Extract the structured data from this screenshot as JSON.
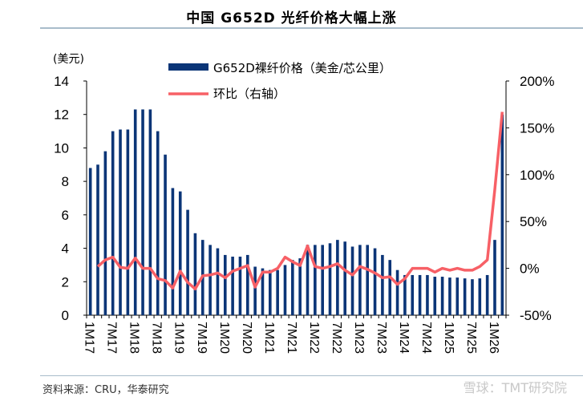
{
  "header": {
    "title": "中国 G652D 光纤价格大幅上涨"
  },
  "footer": {
    "source": "资料来源：CRU，华泰研究",
    "watermark": "雪球：TMT研究院"
  },
  "colors": {
    "bar": "#0b3577",
    "line": "#f76066",
    "rule": "#a9bccb"
  },
  "chart_data": {
    "type": "bar+line",
    "title": "中国 G652D 光纤价格大幅上涨",
    "y_left_unit_label": "(美元)",
    "y_left_ticks": [
      "0",
      "2",
      "4",
      "6",
      "8",
      "10",
      "12",
      "14"
    ],
    "y_left_range": [
      0,
      14
    ],
    "y_right_ticks": [
      "-50%",
      "0%",
      "50%",
      "100%",
      "150%",
      "200%"
    ],
    "y_right_range": [
      -50,
      200
    ],
    "x_tick_labels": [
      "1M17",
      "7M17",
      "1M18",
      "7M18",
      "1M19",
      "7M19",
      "1M20",
      "7M20",
      "1M21",
      "7M21",
      "1M22",
      "7M22",
      "1M23",
      "7M23",
      "1M24",
      "7M24",
      "1M25",
      "7M25",
      "1M26"
    ],
    "legend": [
      {
        "name": "G652D裸纤价格（美金/芯公里）",
        "type": "bar"
      },
      {
        "name": "环比（右轴）",
        "type": "line"
      }
    ],
    "legend_position": "top-center",
    "categories": [
      "1M17",
      "3M17",
      "5M17",
      "7M17",
      "9M17",
      "11M17",
      "1M18",
      "3M18",
      "5M18",
      "7M18",
      "9M18",
      "11M18",
      "1M19",
      "3M19",
      "5M19",
      "7M19",
      "9M19",
      "11M19",
      "1M20",
      "3M20",
      "5M20",
      "7M20",
      "9M20",
      "11M20",
      "1M21",
      "3M21",
      "5M21",
      "7M21",
      "9M21",
      "11M21",
      "1M22",
      "3M22",
      "5M22",
      "7M22",
      "9M22",
      "11M22",
      "1M23",
      "3M23",
      "5M23",
      "7M23",
      "9M23",
      "11M23",
      "1M24",
      "3M24",
      "5M24",
      "7M24",
      "9M24",
      "11M24",
      "1M25",
      "3M25",
      "5M25",
      "7M25",
      "9M25",
      "11M25",
      "1M26",
      "3M26"
    ],
    "series": [
      {
        "name": "G652D裸纤价格（美金/芯公里）",
        "axis": "left",
        "values": [
          8.8,
          9.0,
          9.8,
          11.0,
          11.1,
          11.1,
          12.3,
          12.3,
          12.3,
          11.0,
          9.6,
          7.6,
          7.4,
          6.3,
          4.9,
          4.5,
          4.2,
          4.0,
          3.6,
          3.5,
          3.5,
          3.6,
          2.9,
          2.8,
          2.7,
          2.7,
          3.0,
          3.3,
          3.4,
          4.2,
          4.2,
          4.2,
          4.3,
          4.5,
          4.4,
          4.1,
          4.2,
          4.2,
          4.0,
          3.6,
          3.3,
          2.7,
          2.4,
          2.4,
          2.4,
          2.4,
          2.3,
          2.3,
          2.25,
          2.25,
          2.2,
          2.15,
          2.2,
          2.4,
          4.5,
          12.0
        ]
      },
      {
        "name": "环比（右轴）",
        "axis": "right",
        "unit": "%",
        "values": [
          null,
          2,
          9,
          12,
          1,
          0,
          11,
          0,
          0,
          -11,
          -13,
          -21,
          -3,
          -15,
          -22,
          -8,
          -7,
          -5,
          -10,
          -3,
          0,
          3,
          -20,
          -4,
          -4,
          0,
          12,
          7,
          3,
          24,
          2,
          0,
          2,
          5,
          -2,
          -7,
          2,
          -1,
          -5,
          -10,
          -9,
          -17,
          -11,
          0,
          0,
          0,
          -4,
          0,
          -2,
          0,
          -2,
          -2,
          2,
          9,
          84,
          167
        ]
      }
    ],
    "grid": false
  }
}
